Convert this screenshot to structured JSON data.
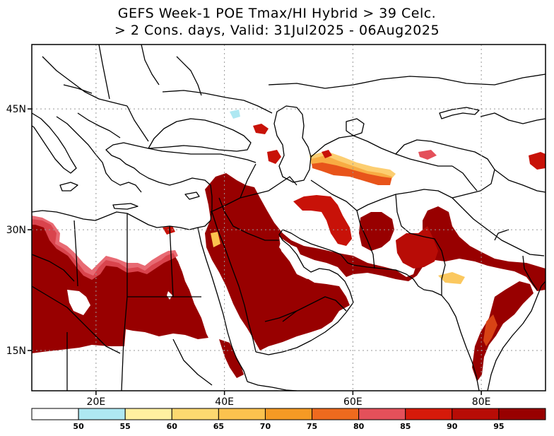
{
  "title_line1": "GEFS Week-1 POE Tmax/HI Hybrid > 39 Celc.",
  "title_line2": "> 2 Cons. days, Valid: 31Jul2025 - 06Aug2025",
  "map": {
    "lon_range": [
      10,
      90
    ],
    "lat_range": [
      10,
      53
    ],
    "lon_ticks": [
      {
        "value": 20,
        "label": "20E"
      },
      {
        "value": 40,
        "label": "40E"
      },
      {
        "value": 60,
        "label": "60E"
      },
      {
        "value": 80,
        "label": "80E"
      }
    ],
    "lat_ticks": [
      {
        "value": 45,
        "label": "45N"
      },
      {
        "value": 30,
        "label": "30N"
      },
      {
        "value": 15,
        "label": "15N"
      }
    ],
    "gridlines": true
  },
  "colorbar": {
    "labels": [
      "50",
      "55",
      "60",
      "65",
      "70",
      "75",
      "80",
      "85",
      "90",
      "95"
    ],
    "colors": [
      "#ffffff",
      "#aee8f2",
      "#fff0a0",
      "#fcd970",
      "#fbc24e",
      "#f59a24",
      "#ee6a1e",
      "#e4505a",
      "#d61a0a",
      "#b80c06",
      "#980000"
    ]
  },
  "colors": {
    "high": "#980000",
    "mid_high": "#c81208",
    "mid": "#e8541a",
    "low": "#fbc24e",
    "lowest": "#aee8f2"
  }
}
